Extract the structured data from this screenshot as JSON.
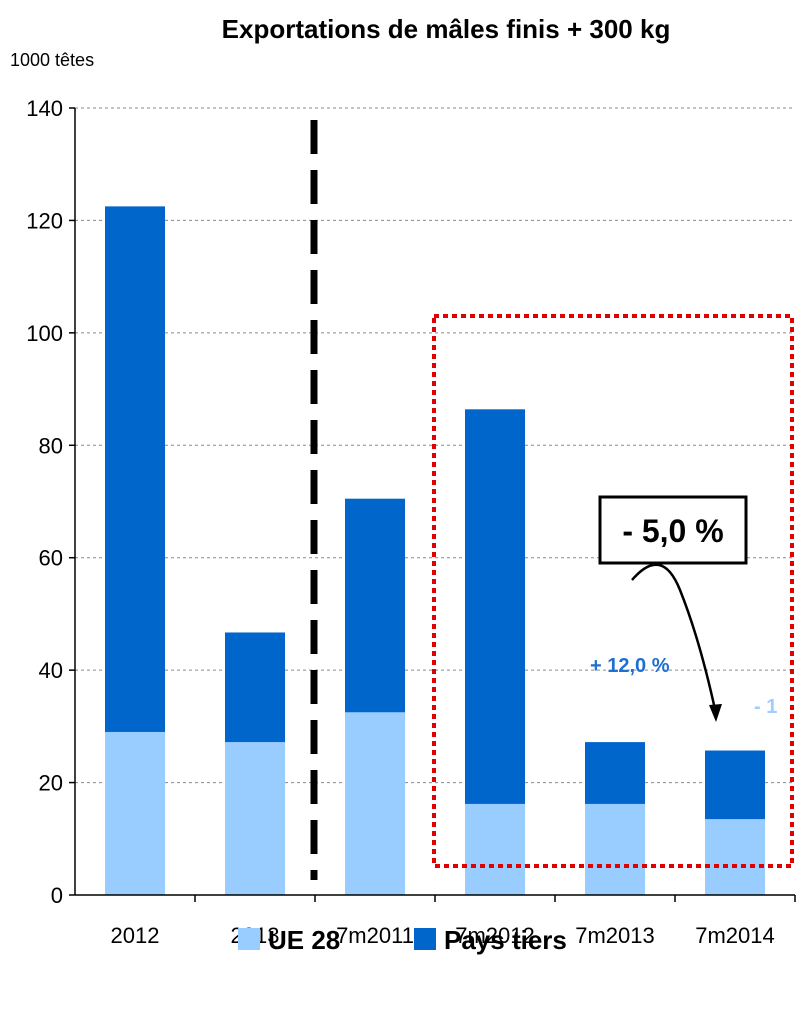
{
  "chart_data": {
    "type": "bar",
    "stacked": true,
    "title": "Exportations de mâles finis + 300 kg",
    "ylabel": "1000 têtes",
    "xlabel": "",
    "ylim": [
      0,
      140
    ],
    "yticks": [
      0,
      20,
      40,
      60,
      80,
      100,
      120,
      140
    ],
    "grid": true,
    "legend_position": "bottom",
    "categories": [
      "2012",
      "2013",
      "7m2011",
      "7m2012",
      "7m2013",
      "7m2014"
    ],
    "series": [
      {
        "name": "UE 28",
        "color": "#99ccff",
        "values": [
          29,
          27.2,
          32.5,
          16.2,
          16.2,
          13.5
        ]
      },
      {
        "name": "Pays tiers",
        "color": "#0066cc",
        "values": [
          93.5,
          19.5,
          38,
          70.2,
          11,
          12.2
        ]
      }
    ],
    "annotations": {
      "total_change": "- 5,0 %",
      "pays_tiers_change": "+ 12,0 %",
      "ue_change_partial": "- 1"
    }
  }
}
